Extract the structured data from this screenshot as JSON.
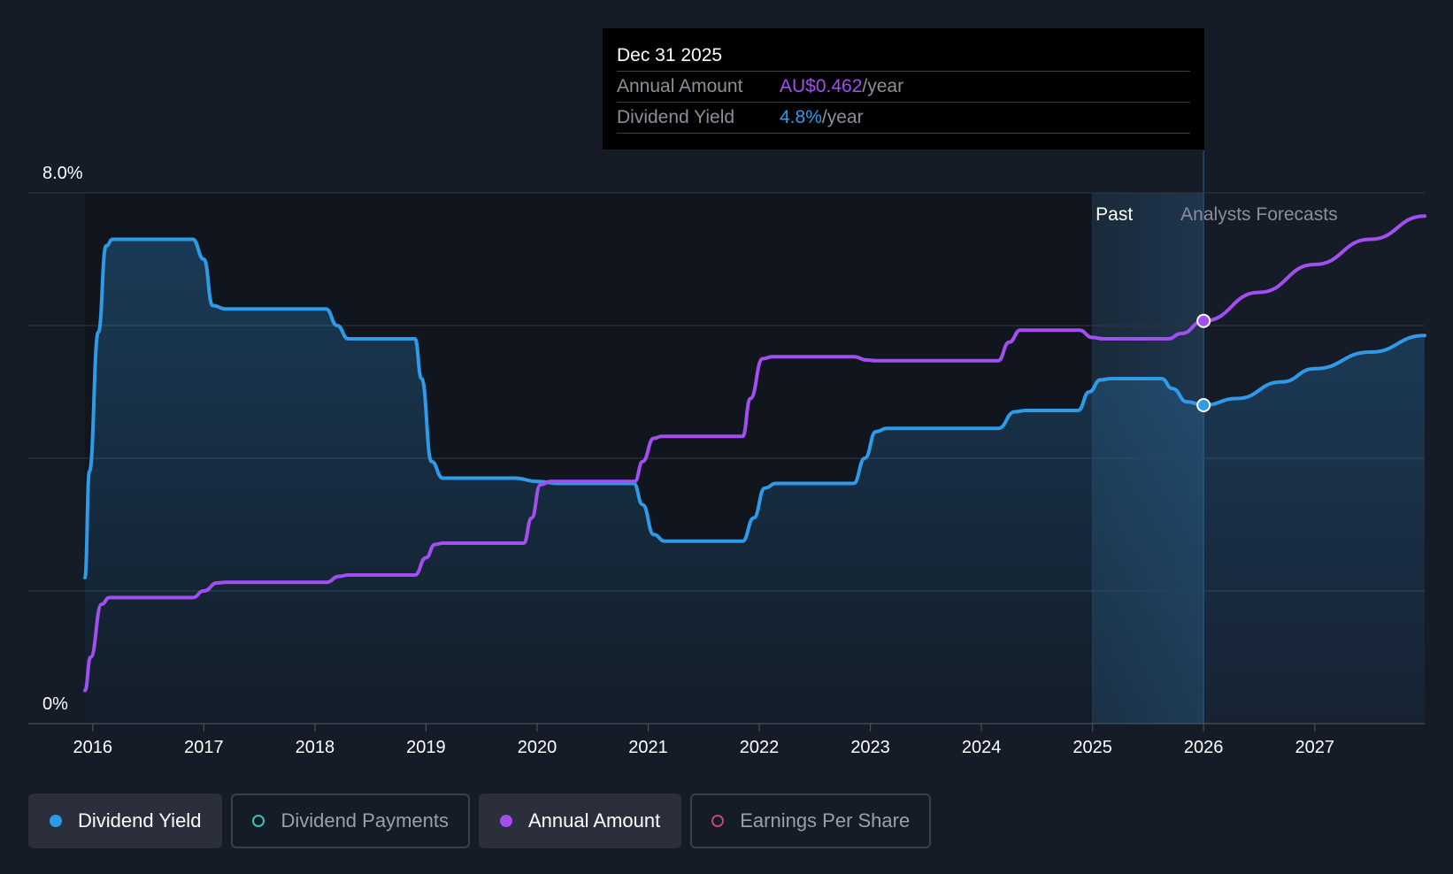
{
  "chart_data": {
    "type": "line",
    "y_axis": {
      "top_label": "8.0%",
      "bottom_label": "0%",
      "ylim": [
        0,
        8.0
      ]
    },
    "x_axis": {
      "ticks": [
        "2016",
        "2017",
        "2018",
        "2019",
        "2020",
        "2021",
        "2022",
        "2023",
        "2024",
        "2025",
        "2026",
        "2027"
      ],
      "range": [
        2015.42,
        2027.99
      ]
    },
    "grid": true,
    "regions": {
      "past_label": "Past",
      "forecast_label": "Analysts Forecasts",
      "past_start": 2025.0,
      "divider": 2026.0
    },
    "series": [
      {
        "name": "Dividend Yield",
        "color": "#2f9ae8",
        "unit": "%",
        "filled": true,
        "points": [
          [
            2015.93,
            2.2
          ],
          [
            2015.97,
            3.8
          ],
          [
            2016.05,
            5.9
          ],
          [
            2016.12,
            7.2
          ],
          [
            2016.18,
            7.3
          ],
          [
            2016.9,
            7.3
          ],
          [
            2017.0,
            7.0
          ],
          [
            2017.08,
            6.3
          ],
          [
            2017.2,
            6.25
          ],
          [
            2018.1,
            6.25
          ],
          [
            2018.2,
            6.0
          ],
          [
            2018.3,
            5.8
          ],
          [
            2018.9,
            5.8
          ],
          [
            2018.96,
            5.2
          ],
          [
            2019.05,
            3.95
          ],
          [
            2019.15,
            3.7
          ],
          [
            2019.8,
            3.7
          ],
          [
            2020.0,
            3.65
          ],
          [
            2020.2,
            3.62
          ],
          [
            2020.87,
            3.62
          ],
          [
            2020.95,
            3.3
          ],
          [
            2021.05,
            2.85
          ],
          [
            2021.15,
            2.75
          ],
          [
            2021.85,
            2.75
          ],
          [
            2021.95,
            3.1
          ],
          [
            2022.05,
            3.55
          ],
          [
            2022.15,
            3.62
          ],
          [
            2022.85,
            3.62
          ],
          [
            2022.95,
            4.0
          ],
          [
            2023.05,
            4.4
          ],
          [
            2023.15,
            4.45
          ],
          [
            2024.15,
            4.45
          ],
          [
            2024.3,
            4.7
          ],
          [
            2024.4,
            4.72
          ],
          [
            2024.87,
            4.72
          ],
          [
            2024.97,
            5.0
          ],
          [
            2025.07,
            5.18
          ],
          [
            2025.17,
            5.2
          ],
          [
            2025.62,
            5.2
          ],
          [
            2025.72,
            5.05
          ],
          [
            2025.85,
            4.85
          ],
          [
            2026.0,
            4.8
          ],
          [
            2026.3,
            4.9
          ],
          [
            2026.7,
            5.15
          ],
          [
            2027.0,
            5.35
          ],
          [
            2027.5,
            5.6
          ],
          [
            2027.99,
            5.85
          ]
        ]
      },
      {
        "name": "Annual Amount",
        "color": "#a24ff0",
        "unit": "AU$",
        "filled": false,
        "points": [
          [
            2015.93,
            0.5
          ],
          [
            2015.98,
            1.0
          ],
          [
            2016.08,
            1.8
          ],
          [
            2016.15,
            1.9
          ],
          [
            2016.9,
            1.9
          ],
          [
            2017.0,
            2.0
          ],
          [
            2017.12,
            2.12
          ],
          [
            2017.2,
            2.13
          ],
          [
            2018.1,
            2.13
          ],
          [
            2018.22,
            2.22
          ],
          [
            2018.3,
            2.24
          ],
          [
            2018.9,
            2.24
          ],
          [
            2019.0,
            2.5
          ],
          [
            2019.08,
            2.7
          ],
          [
            2019.15,
            2.72
          ],
          [
            2019.88,
            2.72
          ],
          [
            2019.95,
            3.1
          ],
          [
            2020.03,
            3.6
          ],
          [
            2020.12,
            3.65
          ],
          [
            2020.88,
            3.65
          ],
          [
            2020.95,
            3.95
          ],
          [
            2021.05,
            4.3
          ],
          [
            2021.12,
            4.33
          ],
          [
            2021.85,
            4.33
          ],
          [
            2021.92,
            4.9
          ],
          [
            2022.03,
            5.5
          ],
          [
            2022.12,
            5.53
          ],
          [
            2022.85,
            5.53
          ],
          [
            2022.97,
            5.48
          ],
          [
            2023.05,
            5.47
          ],
          [
            2024.15,
            5.47
          ],
          [
            2024.25,
            5.75
          ],
          [
            2024.35,
            5.93
          ],
          [
            2024.88,
            5.93
          ],
          [
            2025.0,
            5.82
          ],
          [
            2025.1,
            5.8
          ],
          [
            2025.68,
            5.8
          ],
          [
            2025.8,
            5.88
          ],
          [
            2026.0,
            6.07
          ],
          [
            2026.5,
            6.5
          ],
          [
            2027.0,
            6.92
          ],
          [
            2027.5,
            7.3
          ],
          [
            2027.99,
            7.65
          ]
        ]
      }
    ],
    "highlight": {
      "x": 2026.0,
      "yield": 4.8,
      "amount": 6.07
    }
  },
  "tooltip": {
    "date": "Dec 31 2025",
    "rows": [
      {
        "label": "Annual Amount",
        "value": "AU$0.462",
        "unit": "/year",
        "color": "#a24ff0"
      },
      {
        "label": "Dividend Yield",
        "value": "4.8%",
        "unit": "/year",
        "color": "#2f9ae8"
      }
    ]
  },
  "legend": [
    {
      "label": "Dividend Yield",
      "active": true,
      "color": "#2f9ae8",
      "filled": true
    },
    {
      "label": "Dividend Payments",
      "active": false,
      "color": "#3fc1b0",
      "filled": false
    },
    {
      "label": "Annual Amount",
      "active": true,
      "color": "#a24ff0",
      "filled": true
    },
    {
      "label": "Earnings Per Share",
      "active": false,
      "color": "#c0467a",
      "filled": false
    }
  ]
}
